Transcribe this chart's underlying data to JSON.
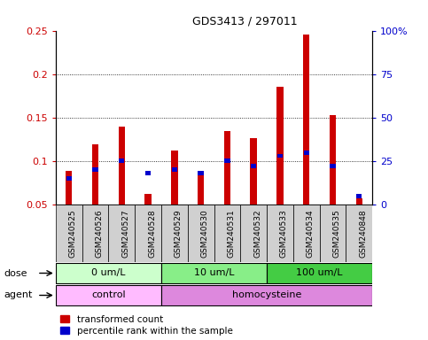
{
  "title": "GDS3413 / 297011",
  "samples": [
    "GSM240525",
    "GSM240526",
    "GSM240527",
    "GSM240528",
    "GSM240529",
    "GSM240530",
    "GSM240531",
    "GSM240532",
    "GSM240533",
    "GSM240534",
    "GSM240535",
    "GSM240848"
  ],
  "red_values": [
    0.089,
    0.119,
    0.14,
    0.062,
    0.112,
    0.085,
    0.135,
    0.126,
    0.185,
    0.245,
    0.153,
    0.057
  ],
  "blue_values_pct": [
    15,
    20,
    25,
    18,
    20,
    18,
    25,
    22,
    28,
    30,
    22,
    5
  ],
  "ymin": 0.05,
  "ymax": 0.25,
  "yticks_left": [
    0.05,
    0.1,
    0.15,
    0.2,
    0.25
  ],
  "yticks_right_pct": [
    0,
    25,
    50,
    75,
    100
  ],
  "red_color": "#cc0000",
  "blue_color": "#0000cc",
  "bar_bg_color": "#c8c8c8",
  "label_bg_color": "#d0d0d0",
  "dose_groups": [
    {
      "label": "0 um/L",
      "start": 0,
      "end": 4,
      "color": "#ccffcc"
    },
    {
      "label": "10 um/L",
      "start": 4,
      "end": 8,
      "color": "#88ee88"
    },
    {
      "label": "100 um/L",
      "start": 8,
      "end": 12,
      "color": "#44cc44"
    }
  ],
  "agent_groups": [
    {
      "label": "control",
      "start": 0,
      "end": 4,
      "color": "#ffbbff"
    },
    {
      "label": "homocysteine",
      "start": 4,
      "end": 12,
      "color": "#dd88dd"
    }
  ],
  "legend_red": "transformed count",
  "legend_blue": "percentile rank within the sample",
  "dose_label": "dose",
  "agent_label": "agent"
}
